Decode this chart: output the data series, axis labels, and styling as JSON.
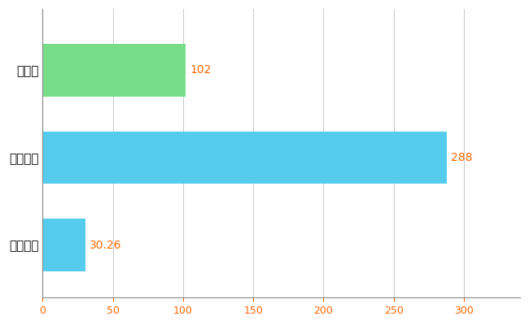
{
  "categories": [
    "全国平均",
    "全国最大",
    "福岡県"
  ],
  "values": [
    30.26,
    288,
    102
  ],
  "bar_colors": [
    "#55ccee",
    "#55ccee",
    "#77dd88"
  ],
  "value_labels": [
    "30.26",
    "288",
    "102"
  ],
  "xlim": [
    0,
    340
  ],
  "xticks": [
    0,
    50,
    100,
    150,
    200,
    250,
    300
  ],
  "grid_color": "#cccccc",
  "background_color": "#ffffff",
  "tick_color": "#ff6600",
  "label_fontsize": 11,
  "value_fontsize": 10
}
